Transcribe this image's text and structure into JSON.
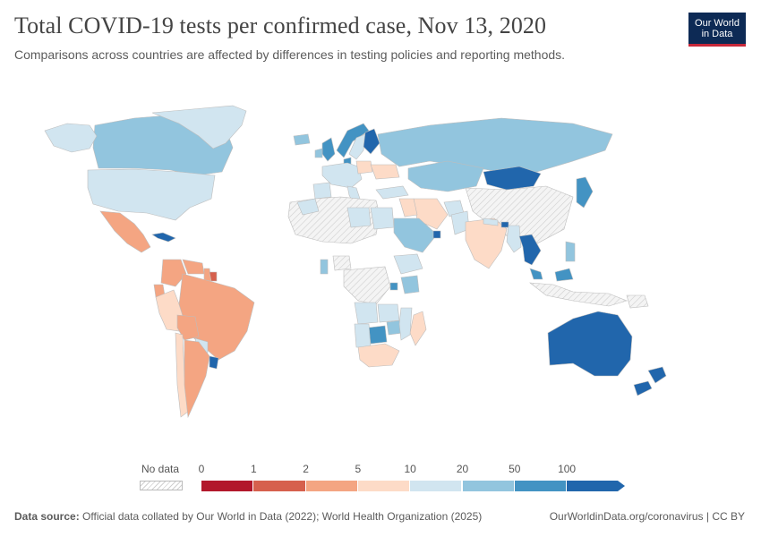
{
  "title": "Total COVID-19 tests per confirmed case, Nov 13, 2020",
  "subtitle": "Comparisons across countries are affected by differences in testing policies and reporting methods.",
  "logo": {
    "line1": "Our World",
    "line2": "in Data"
  },
  "legend": {
    "no_data_label": "No data",
    "ticks": [
      "0",
      "1",
      "2",
      "5",
      "10",
      "20",
      "50",
      "100"
    ],
    "colors": [
      "#b2182b",
      "#d6604d",
      "#f4a582",
      "#fddbc7",
      "#d1e5f0",
      "#92c5de",
      "#4393c3",
      "#2166ac"
    ]
  },
  "colors": {
    "no_data_fill": "#e9e9e9",
    "border": "#bdbdbd",
    "text": "#5b5b5b"
  },
  "regions": [
    {
      "name": "Canada",
      "bin": 5
    },
    {
      "name": "United States",
      "bin": 4
    },
    {
      "name": "Mexico",
      "bin": 2
    },
    {
      "name": "Cuba",
      "bin": 7
    },
    {
      "name": "Greenland",
      "bin": 4
    },
    {
      "name": "Alaska",
      "bin": 4
    },
    {
      "name": "Colombia",
      "bin": 2
    },
    {
      "name": "Venezuela",
      "bin": 2
    },
    {
      "name": "Guyana",
      "bin": 2
    },
    {
      "name": "Suriname",
      "bin": 1
    },
    {
      "name": "Ecuador",
      "bin": 2
    },
    {
      "name": "Peru",
      "bin": 3
    },
    {
      "name": "Brazil",
      "bin": 2
    },
    {
      "name": "Bolivia",
      "bin": 2
    },
    {
      "name": "Paraguay",
      "bin": 4
    },
    {
      "name": "Chile",
      "bin": 3
    },
    {
      "name": "Argentina",
      "bin": 2
    },
    {
      "name": "Uruguay",
      "bin": 7
    },
    {
      "name": "Iceland",
      "bin": 5
    },
    {
      "name": "United Kingdom",
      "bin": 6
    },
    {
      "name": "Ireland",
      "bin": 5
    },
    {
      "name": "Norway",
      "bin": 6
    },
    {
      "name": "Sweden",
      "bin": 4
    },
    {
      "name": "Finland",
      "bin": 7
    },
    {
      "name": "Denmark",
      "bin": 6
    },
    {
      "name": "Western Europe",
      "bin": 4
    },
    {
      "name": "Spain",
      "bin": 4
    },
    {
      "name": "Italy",
      "bin": 4
    },
    {
      "name": "Poland",
      "bin": 3
    },
    {
      "name": "Ukraine",
      "bin": 3
    },
    {
      "name": "Russia",
      "bin": 5
    },
    {
      "name": "Kazakhstan",
      "bin": 5
    },
    {
      "name": "Mongolia",
      "bin": 7
    },
    {
      "name": "China",
      "bin": null
    },
    {
      "name": "Japan",
      "bin": 6
    },
    {
      "name": "Turkey",
      "bin": 4
    },
    {
      "name": "Iran",
      "bin": 3
    },
    {
      "name": "Iraq",
      "bin": 3
    },
    {
      "name": "Saudi Arabia",
      "bin": 5
    },
    {
      "name": "UAE",
      "bin": 7
    },
    {
      "name": "Afghanistan",
      "bin": 4
    },
    {
      "name": "Pakistan",
      "bin": 4
    },
    {
      "name": "India",
      "bin": 3
    },
    {
      "name": "Nepal",
      "bin": 4
    },
    {
      "name": "Bhutan",
      "bin": 7
    },
    {
      "name": "Myanmar",
      "bin": 4
    },
    {
      "name": "Thailand",
      "bin": 7
    },
    {
      "name": "Malaysia",
      "bin": 6
    },
    {
      "name": "Philippines",
      "bin": 5
    },
    {
      "name": "Indonesia",
      "bin": null
    },
    {
      "name": "Australia",
      "bin": 7
    },
    {
      "name": "New Zealand",
      "bin": 7
    },
    {
      "name": "Papua New Guinea",
      "bin": null
    },
    {
      "name": "North Africa",
      "bin": null
    },
    {
      "name": "Morocco",
      "bin": 4
    },
    {
      "name": "Libya",
      "bin": 4
    },
    {
      "name": "Egypt",
      "bin": 4
    },
    {
      "name": "Ethiopia",
      "bin": 4
    },
    {
      "name": "Kenya",
      "bin": 5
    },
    {
      "name": "Rwanda",
      "bin": 6
    },
    {
      "name": "Ghana",
      "bin": 5
    },
    {
      "name": "Nigeria",
      "bin": null
    },
    {
      "name": "Central Africa",
      "bin": null
    },
    {
      "name": "Angola",
      "bin": 4
    },
    {
      "name": "Zambia",
      "bin": 4
    },
    {
      "name": "Zimbabwe",
      "bin": 5
    },
    {
      "name": "Botswana",
      "bin": 6
    },
    {
      "name": "Namibia",
      "bin": 4
    },
    {
      "name": "South Africa",
      "bin": 3
    },
    {
      "name": "Madagascar",
      "bin": 3
    },
    {
      "name": "Mozambique",
      "bin": 4
    }
  ],
  "footer": {
    "source_label": "Data source:",
    "source_text": "Official data collated by Our World in Data (2022); World Health Organization (2025)",
    "right": "OurWorldinData.org/coronavirus | CC BY"
  }
}
